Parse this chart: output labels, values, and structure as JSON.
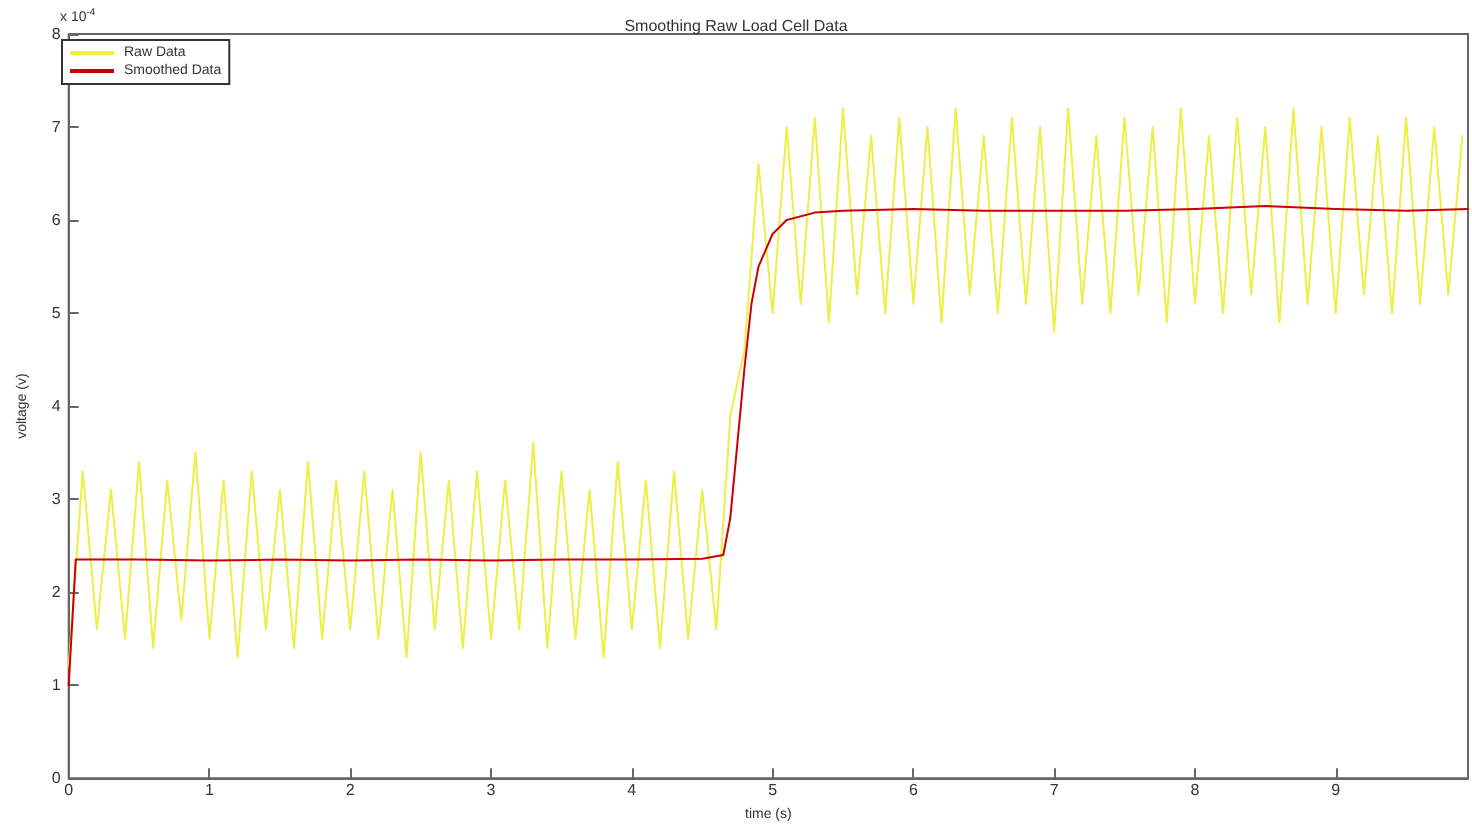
{
  "chart_data": {
    "type": "line",
    "title": "Smoothing Raw Load Cell Data",
    "xlabel": "time (s)",
    "ylabel": "voltage (v)",
    "annotations": [
      "x 10$^{-4}$"
    ],
    "xlim": [
      0,
      9.94
    ],
    "xticks": [
      0,
      1,
      2,
      3,
      4,
      5,
      6,
      7,
      8,
      9
    ],
    "ylim": [
      0,
      8
    ],
    "yticks": [
      0,
      1,
      2,
      3,
      4,
      5,
      6,
      7,
      8
    ],
    "grid": false,
    "legend": "top left",
    "marker": "none",
    "line_style": "solid",
    "series": [
      {
        "name": "Raw Data",
        "color": "#eeee44",
        "x": [
          0,
          0.1,
          0.2,
          0.3,
          0.4,
          0.5,
          0.6,
          0.7,
          0.8,
          0.9,
          1,
          1.1,
          1.2,
          1.3,
          1.4,
          1.5,
          1.6,
          1.7,
          1.8,
          1.9,
          2,
          2.1,
          2.2,
          2.3,
          2.4,
          2.5,
          2.6,
          2.7,
          2.8,
          2.9,
          3,
          3.1,
          3.2,
          3.3,
          3.4,
          3.5,
          3.6,
          3.7,
          3.8,
          3.9,
          4,
          4.1,
          4.2,
          4.3,
          4.4,
          4.5,
          4.6,
          4.7,
          4.8,
          4.9,
          5,
          5.1,
          5.2,
          5.3,
          5.4,
          5.5,
          5.6,
          5.7,
          5.8,
          5.9,
          6,
          6.1,
          6.2,
          6.3,
          6.4,
          6.5,
          6.6,
          6.7,
          6.8,
          6.9,
          7,
          7.1,
          7.2,
          7.3,
          7.4,
          7.5,
          7.6,
          7.7,
          7.8,
          7.9,
          8,
          8.1,
          8.2,
          8.3,
          8.4,
          8.5,
          8.6,
          8.7,
          8.8,
          8.9,
          9,
          9.1,
          9.2,
          9.3,
          9.4,
          9.5,
          9.6,
          9.7,
          9.8,
          9.9
        ],
        "values": [
          1.2,
          3.3,
          1.6,
          3.1,
          1.5,
          3.4,
          1.4,
          3.2,
          1.7,
          3.5,
          1.5,
          3.2,
          1.3,
          3.3,
          1.6,
          3.1,
          1.4,
          3.4,
          1.5,
          3.2,
          1.6,
          3.3,
          1.5,
          3.1,
          1.3,
          3.5,
          1.6,
          3.2,
          1.4,
          3.3,
          1.5,
          3.2,
          1.6,
          3.6,
          1.4,
          3.3,
          1.5,
          3.1,
          1.3,
          3.4,
          1.6,
          3.2,
          1.4,
          3.3,
          1.5,
          3.1,
          1.6,
          3.9,
          4.6,
          6.6,
          5.0,
          7.0,
          5.1,
          7.1,
          4.9,
          7.2,
          5.2,
          6.9,
          5.0,
          7.1,
          5.1,
          7.0,
          4.9,
          7.2,
          5.2,
          6.9,
          5.0,
          7.1,
          5.1,
          7.0,
          4.8,
          7.2,
          5.1,
          6.9,
          5.0,
          7.1,
          5.2,
          7.0,
          4.9,
          7.2,
          5.1,
          6.9,
          5.0,
          7.1,
          5.2,
          7.0,
          4.9,
          7.2,
          5.1,
          7.0,
          5.0,
          7.1,
          5.2,
          6.9,
          5.0,
          7.1,
          5.1,
          7.0,
          5.2,
          6.9
        ]
      },
      {
        "name": "Smoothed Data",
        "color": "#cc0000",
        "x": [
          0,
          0.05,
          0.5,
          1,
          1.5,
          2,
          2.5,
          3,
          3.5,
          4,
          4.5,
          4.65,
          4.7,
          4.75,
          4.8,
          4.85,
          4.9,
          5,
          5.1,
          5.3,
          5.5,
          6,
          6.5,
          7,
          7.5,
          8,
          8.5,
          9,
          9.5,
          9.94
        ],
        "values": [
          1.0,
          2.35,
          2.35,
          2.34,
          2.35,
          2.34,
          2.35,
          2.34,
          2.35,
          2.35,
          2.36,
          2.4,
          2.8,
          3.6,
          4.4,
          5.1,
          5.5,
          5.85,
          6.0,
          6.08,
          6.1,
          6.12,
          6.1,
          6.1,
          6.1,
          6.12,
          6.15,
          6.12,
          6.1,
          6.12
        ]
      }
    ]
  }
}
